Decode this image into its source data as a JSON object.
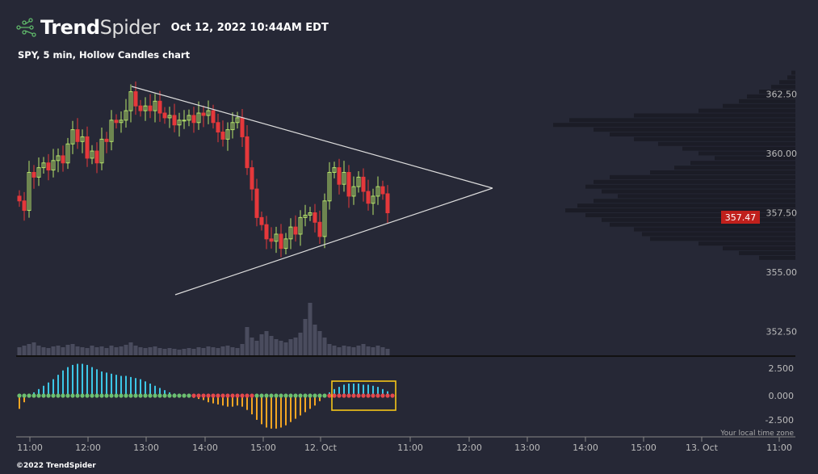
{
  "header": {
    "brand_bold": "Trend",
    "brand_light": "Spider",
    "datetime": "Oct 12, 2022 10:44AM EDT"
  },
  "subtitle": "SPY, 5 min, Hollow Candles chart",
  "footer": "©2022 TrendSpider",
  "timezone_note": "Your local time zone",
  "colors": {
    "bg": "#262836",
    "up": "#b5e36a",
    "down": "#e5383b",
    "macd_pos": "#3cc6e6",
    "macd_neg": "#f5a623",
    "dot_green": "#6cc070",
    "dot_red": "#e5484d",
    "box": "#f5c518",
    "price_tag": "#c0201c"
  },
  "chart_data": {
    "type": "candlestick",
    "price_axis": {
      "ticks": [
        "362.50",
        "360.00",
        "357.50",
        "355.00",
        "352.50"
      ],
      "values": [
        362.5,
        360,
        357.5,
        355,
        352.5
      ]
    },
    "current_price": "357.47",
    "time_axis": [
      "11:00",
      "12:00",
      "13:00",
      "14:00",
      "15:00",
      "12. Oct",
      "11:00",
      "12:00",
      "13:00",
      "14:00",
      "15:00",
      "13. Oct",
      "11:00"
    ],
    "closes": [
      358.0,
      357.6,
      359.2,
      359.0,
      359.4,
      359.6,
      359.3,
      359.7,
      359.9,
      359.6,
      360.4,
      361.0,
      360.5,
      360.7,
      359.8,
      360.1,
      359.6,
      360.6,
      360.5,
      361.4,
      361.3,
      361.4,
      361.8,
      362.6,
      362.0,
      361.8,
      362.0,
      361.8,
      362.2,
      361.7,
      361.5,
      361.6,
      361.2,
      361.4,
      361.4,
      361.6,
      361.3,
      361.7,
      361.6,
      361.8,
      361.3,
      360.9,
      360.6,
      361.0,
      361.3,
      361.5,
      360.7,
      359.4,
      358.5,
      357.3,
      357.0,
      356.4,
      356.3,
      356.6,
      356.0,
      356.4,
      356.9,
      356.6,
      357.3,
      357.4,
      357.5,
      357.1,
      356.5,
      358.0,
      359.2,
      359.4,
      358.7,
      359.2,
      358.2,
      358.6,
      359.0,
      358.4,
      357.9,
      358.2,
      358.6,
      358.3,
      357.5
    ],
    "volume": [
      10,
      12,
      14,
      16,
      12,
      10,
      9,
      11,
      12,
      10,
      13,
      14,
      11,
      10,
      9,
      12,
      10,
      11,
      9,
      12,
      10,
      11,
      13,
      16,
      12,
      10,
      9,
      10,
      11,
      9,
      8,
      9,
      8,
      7,
      8,
      9,
      8,
      10,
      9,
      11,
      10,
      9,
      11,
      12,
      10,
      9,
      14,
      35,
      22,
      18,
      26,
      30,
      24,
      20,
      18,
      16,
      20,
      22,
      28,
      45,
      65,
      38,
      30,
      22,
      14,
      12,
      10,
      12,
      11,
      10,
      12,
      14,
      11,
      10,
      12,
      10,
      8
    ],
    "macd_ylim": [
      -2.5,
      2.5
    ],
    "macd_ticks": [
      "2.500",
      "0.000",
      "-2.500"
    ],
    "macd": [
      -1.2,
      -0.6,
      0.1,
      0.3,
      0.6,
      0.9,
      1.2,
      1.5,
      1.9,
      2.3,
      2.6,
      2.8,
      2.9,
      2.9,
      2.8,
      2.6,
      2.4,
      2.2,
      2.1,
      2.0,
      1.9,
      1.8,
      1.8,
      1.7,
      1.6,
      1.5,
      1.3,
      1.1,
      0.9,
      0.7,
      0.5,
      0.3,
      0.2,
      0.1,
      0.0,
      -0.1,
      -0.2,
      -0.3,
      -0.4,
      -0.6,
      -0.7,
      -0.8,
      -0.9,
      -1.0,
      -1.0,
      -0.9,
      -1.0,
      -1.3,
      -1.7,
      -2.2,
      -2.6,
      -2.9,
      -3.0,
      -3.0,
      -2.9,
      -2.7,
      -2.4,
      -2.1,
      -1.8,
      -1.5,
      -1.2,
      -0.9,
      -0.5,
      0.1,
      0.3,
      0.6,
      0.8,
      1.0,
      1.1,
      1.1,
      1.1,
      1.0,
      1.0,
      0.9,
      0.8,
      0.6,
      0.4
    ],
    "signal": "ggggggggggggggggggggggggggggggggggggrrrrrrrrrrrrrgggggggggggggggrrrrrrrrrrrrrr",
    "volume_profile": {
      "top_price": 363.4,
      "step": 0.2,
      "values": [
        5,
        10,
        20,
        30,
        45,
        60,
        70,
        90,
        120,
        200,
        280,
        300,
        250,
        230,
        200,
        170,
        140,
        120,
        100,
        130,
        150,
        180,
        230,
        250,
        260,
        240,
        220,
        250,
        270,
        285,
        260,
        240,
        230,
        200,
        190,
        180,
        120,
        90,
        70,
        45
      ]
    },
    "trendlines": [
      {
        "from": [
          362.7,
          "12:45"
        ],
        "to": [
          358.3,
          "Oct 12 12:35"
        ]
      },
      {
        "from": [
          354.4,
          "13:30"
        ],
        "to": [
          358.3,
          "Oct 12 12:35"
        ]
      }
    ]
  }
}
